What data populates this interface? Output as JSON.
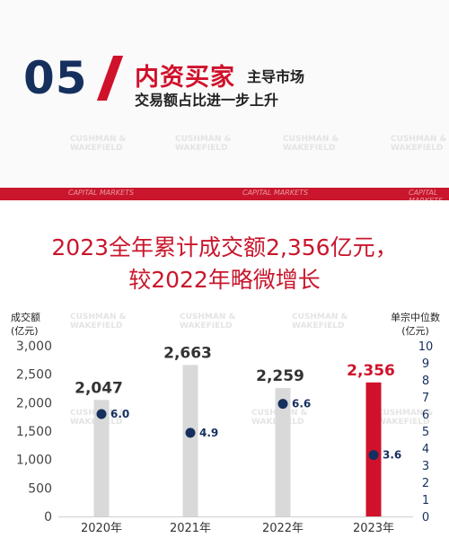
{
  "header": {
    "section_number": "05",
    "title_red": "内资买家",
    "title_line1_tail": "主导市场",
    "title_line2": "交易额占比进一步上升"
  },
  "ribbon": {
    "label": "CAPITAL MARKETS"
  },
  "watermark": {
    "line1": "CUSHMAN &",
    "line2": "WAKEFIELD"
  },
  "headline": {
    "line1": "2023全年累计成交额2,356亿元，",
    "line2": "较2022年略微增长"
  },
  "colors": {
    "bar_default": "#d9d9d9",
    "bar_highlight": "#d0112b",
    "dot": "#16305e",
    "value_highlight": "#d0112b"
  },
  "chart_data": {
    "type": "bar",
    "categories": [
      "2020年",
      "2021年",
      "2022年",
      "2023年"
    ],
    "ylabel_left": "成交额\n(亿元)",
    "ylabel_right": "单宗中位数\n(亿元)",
    "ylim": [
      0,
      3000
    ],
    "y_ticks": [
      "0",
      "500",
      "1,000",
      "1,500",
      "2,000",
      "2,500",
      "3,000"
    ],
    "y2lim": [
      0,
      10
    ],
    "y2_ticks": [
      "0",
      "1",
      "2",
      "3",
      "4",
      "5",
      "6",
      "7",
      "8",
      "9",
      "10"
    ],
    "series": [
      {
        "type": "bar",
        "values": [
          2047,
          2663,
          2259,
          2356
        ],
        "labels": [
          "2,047",
          "2,663",
          "2,259",
          "2,356"
        ],
        "highlight_index": 3
      },
      {
        "type": "scatter",
        "axis": "right",
        "values": [
          6.0,
          4.9,
          6.6,
          3.6
        ],
        "labels": [
          "6.0",
          "4.9",
          "6.6",
          "3.6"
        ]
      }
    ]
  }
}
